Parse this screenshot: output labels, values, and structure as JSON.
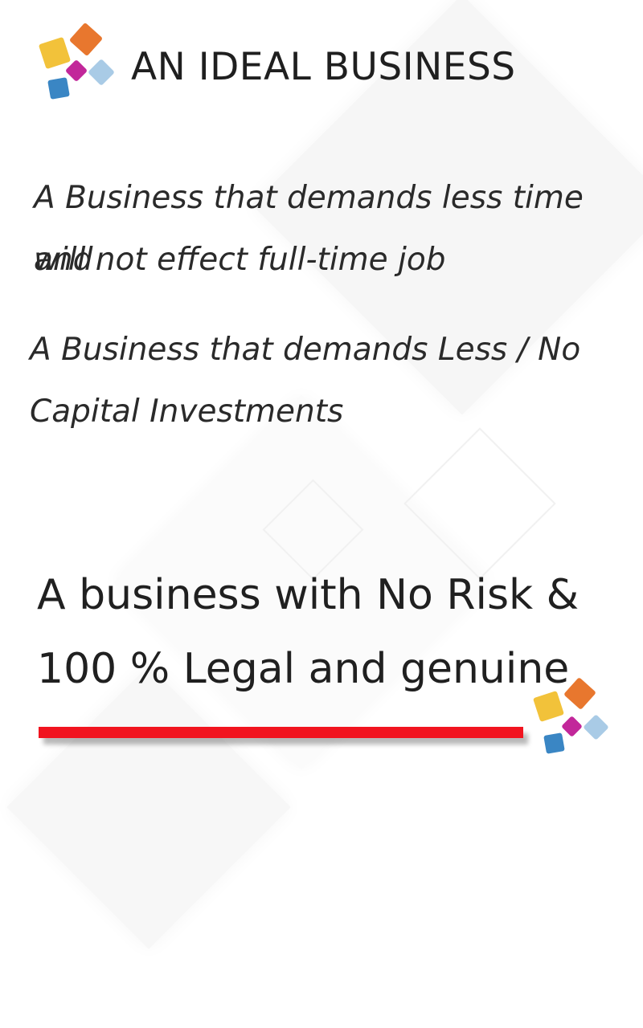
{
  "header": {
    "title": "AN IDEAL BUSINESS"
  },
  "point1": {
    "line1": "A Business that demands less time and",
    "line2": "will not effect full-time job"
  },
  "point2": {
    "line1": "A Business that demands Less / No",
    "line2": "Capital Investments"
  },
  "point3": {
    "line1": "A business with No Risk &",
    "line2": "100 % Legal and genuine"
  },
  "colors": {
    "accent_red": "#f1141f",
    "tile_yellow": "#f2c23a",
    "tile_orange": "#e8772e",
    "tile_magenta": "#c2279a",
    "tile_blue": "#3a86c4",
    "tile_light_blue": "#a9cbe6"
  }
}
